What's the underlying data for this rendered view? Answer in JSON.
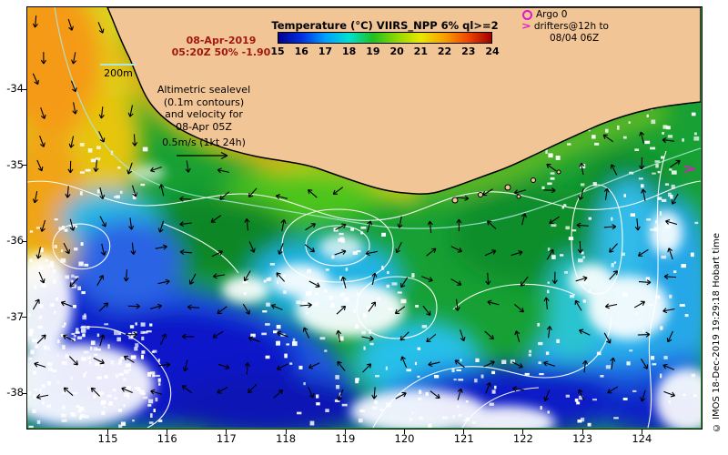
{
  "legend": {
    "title": "Temperature (°C) VIIRS_NPP 6% ql>=2",
    "tick_labels": [
      "15",
      "16",
      "17",
      "18",
      "19",
      "20",
      "21",
      "22",
      "23",
      "24"
    ],
    "colorbar_colors": [
      "#000090",
      "#0030e0",
      "#00a0ff",
      "#00e0d0",
      "#20c020",
      "#90d800",
      "#e8e800",
      "#f8a000",
      "#f04800",
      "#a00000"
    ]
  },
  "annotations": {
    "datetime_line1": "08-Apr-2019",
    "datetime_line2": "05:20Z 50% -1.90",
    "bathy_label": "200m",
    "altimetry_lines": [
      "Altimetric sealevel",
      "(0.1m contours)",
      "and velocity for",
      "08-Apr 05Z"
    ],
    "velocity_scale": "0.5m/s (1kt 24h)",
    "argo_label": "Argo 0",
    "drifters_line1": "drifters@12h to",
    "drifters_line2": "08/04 06Z",
    "chevron": ">"
  },
  "axes": {
    "x_tick_labels": [
      "115",
      "116",
      "117",
      "118",
      "119",
      "120",
      "121",
      "122",
      "123",
      "124"
    ],
    "y_tick_labels": [
      "-34",
      "-35",
      "-36",
      "-37",
      "-38"
    ]
  },
  "credit": "© IMOS 18-Dec-2019 19:29:18 Hobart time",
  "colors": {
    "land": "#f2c596",
    "marker_magenta": "#e018c8",
    "datetime_text": "#a01810",
    "contour_white": "#ffffff",
    "bathy_cyan": "#aee8dc"
  }
}
